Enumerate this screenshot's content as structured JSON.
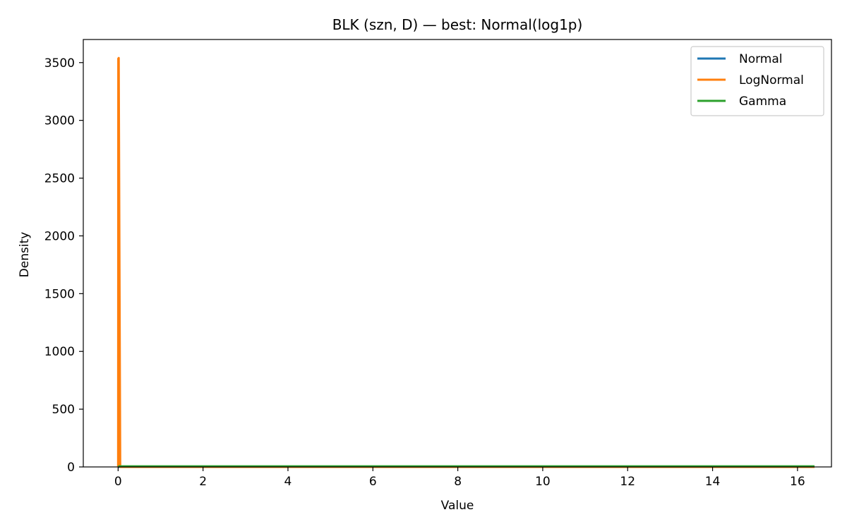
{
  "chart_data": {
    "type": "line",
    "title": "BLK (szn, D) — best: Normal(log1p)",
    "xlabel": "Value",
    "ylabel": "Density",
    "xlim": [
      -0.82,
      16.8
    ],
    "ylim": [
      0,
      3700
    ],
    "xticks": [
      0,
      2,
      4,
      6,
      8,
      10,
      12,
      14,
      16
    ],
    "yticks": [
      0,
      500,
      1000,
      1500,
      2000,
      2500,
      3000,
      3500
    ],
    "grid": false,
    "legend_position": "top-right",
    "series": [
      {
        "name": "Normal",
        "color": "#1f77b4",
        "x": [
          0,
          16.4
        ],
        "y": [
          0,
          0
        ]
      },
      {
        "name": "LogNormal",
        "color": "#ff7f0e",
        "x": [
          0,
          0.004,
          0.015,
          0.03,
          0.05,
          0.1,
          1,
          16.4
        ],
        "y": [
          0,
          3535,
          3540,
          2000,
          0,
          0,
          0,
          0
        ]
      },
      {
        "name": "Gamma",
        "color": "#2ca02c",
        "x": [
          0,
          16.4
        ],
        "y": [
          5,
          5
        ]
      }
    ]
  }
}
